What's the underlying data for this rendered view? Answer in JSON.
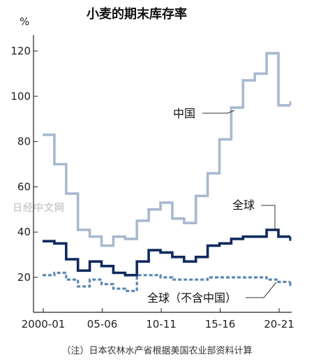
{
  "chart_data": {
    "type": "line",
    "step": true,
    "title": "小麦的期末库存率",
    "y_unit": "%",
    "ylim": [
      10,
      130
    ],
    "yticks": [
      20,
      40,
      60,
      80,
      100,
      120
    ],
    "x_start": 2000,
    "x_tick_years": [
      2000,
      2005,
      2010,
      2015,
      2020
    ],
    "x_tick_labels": [
      "2000-01",
      "05-06",
      "10-11",
      "15-16",
      "20-21"
    ],
    "categories": [
      "2000-01",
      "2001-02",
      "2002-03",
      "2003-04",
      "2004-05",
      "2005-06",
      "2006-07",
      "2007-08",
      "2008-09",
      "2009-10",
      "2010-11",
      "2011-12",
      "2012-13",
      "2013-14",
      "2014-15",
      "2015-16",
      "2016-17",
      "2017-18",
      "2018-19",
      "2019-20",
      "2020-21"
    ],
    "series": [
      {
        "name": "中国",
        "color": "#a7b9cf",
        "style": "solid",
        "values": [
          83,
          70,
          57,
          41,
          38,
          34,
          38,
          37,
          45,
          50,
          53,
          46,
          44,
          56,
          66,
          81,
          95,
          107,
          110,
          119,
          96
        ]
      },
      {
        "name": "全球",
        "color": "#0f2a5e",
        "style": "solid",
        "values": [
          36,
          35,
          28,
          23,
          27,
          25,
          22,
          21,
          27,
          32,
          31,
          29,
          27,
          29,
          34,
          35,
          37,
          38,
          38,
          41,
          38
        ]
      },
      {
        "name": "全球（不含中国）",
        "color": "#5b86b2",
        "style": "dashed",
        "values": [
          21,
          22,
          19,
          16,
          19,
          17,
          15,
          14,
          21,
          21,
          20,
          19,
          19,
          19,
          20,
          20,
          20,
          20,
          20,
          19,
          18
        ]
      }
    ]
  },
  "watermark": "日经中文网",
  "footnote": "（注）日本农林水产省根据美国农业部资料计算"
}
